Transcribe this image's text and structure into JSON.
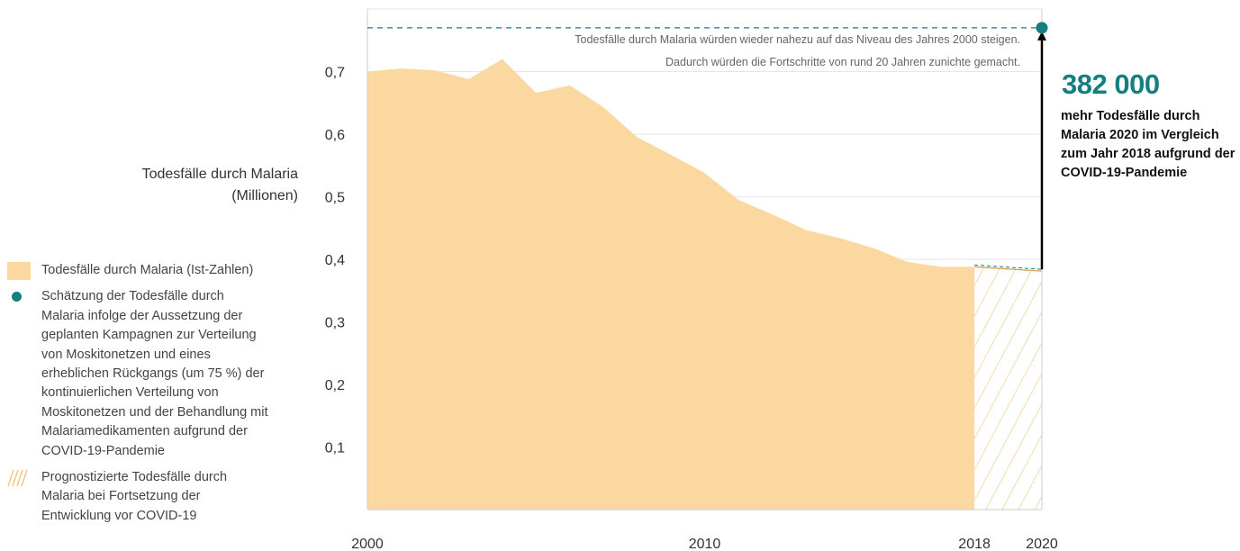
{
  "chart_data": {
    "type": "area",
    "ylabel_lines": [
      "Todesfälle durch Malaria",
      "(Millionen)"
    ],
    "x": [
      2000,
      2001,
      2002,
      2003,
      2004,
      2005,
      2006,
      2007,
      2008,
      2009,
      2010,
      2011,
      2012,
      2013,
      2014,
      2015,
      2016,
      2017,
      2018
    ],
    "values": [
      0.7,
      0.705,
      0.702,
      0.688,
      0.72,
      0.666,
      0.678,
      0.643,
      0.595,
      0.567,
      0.538,
      0.495,
      0.472,
      0.447,
      0.434,
      0.418,
      0.396,
      0.388,
      0.388
    ],
    "projection": {
      "x": [
        2018,
        2020
      ],
      "values": [
        0.388,
        0.381
      ]
    },
    "estimate_2020": 0.77,
    "ylim": [
      0,
      0.8
    ],
    "yticks": [
      {
        "v": 0.1,
        "label": "0,1"
      },
      {
        "v": 0.2,
        "label": "0,2"
      },
      {
        "v": 0.3,
        "label": "0,3"
      },
      {
        "v": 0.4,
        "label": "0,4"
      },
      {
        "v": 0.5,
        "label": "0,5"
      },
      {
        "v": 0.6,
        "label": "0,6"
      },
      {
        "v": 0.7,
        "label": "0,7"
      }
    ],
    "xticks": [
      {
        "v": 2000,
        "label": "2000"
      },
      {
        "v": 2010,
        "label": "2010"
      },
      {
        "v": 2018,
        "label": "2018"
      },
      {
        "v": 2020,
        "label": "2020"
      }
    ],
    "xlim": [
      2000,
      2020
    ],
    "grid": true,
    "colors": {
      "area": "#fbd89f",
      "hatch": "#f2c57c",
      "estimate": "#137f7e",
      "grid": "#e6e6e6",
      "arrow": "#000000",
      "projection_line": "#d4a04a"
    }
  },
  "annotation": {
    "lines": [
      "Todesfälle durch Malaria würden wieder nahezu auf das Niveau des Jahres 2000 steigen.",
      "Dadurch würden die Fortschritte von rund 20 Jahren zunichte gemacht."
    ]
  },
  "callout": {
    "value": "382 000",
    "text": "mehr Todesfälle durch Malaria 2020 im Vergleich zum Jahr 2018 aufgrund der COVID-19-Pandemie"
  },
  "legend": [
    {
      "key": "actual",
      "text": "Todesfälle durch Malaria (Ist-Zahlen)"
    },
    {
      "key": "estimate",
      "text": "Schätzung der Todesfälle durch Malaria infolge der Aussetzung der geplanten Kampagnen zur Verteilung von Moskitonetzen und eines erheblichen Rückgangs (um 75 %) der kontinuierlichen Verteilung von Moskitonetzen und der Behandlung mit Malariamedikamenten aufgrund der COVID-19-Pandemie"
    },
    {
      "key": "projection",
      "text": "Prognostizierte Todesfälle durch Malaria bei Fortsetzung der Entwicklung vor COVID-19"
    }
  ]
}
